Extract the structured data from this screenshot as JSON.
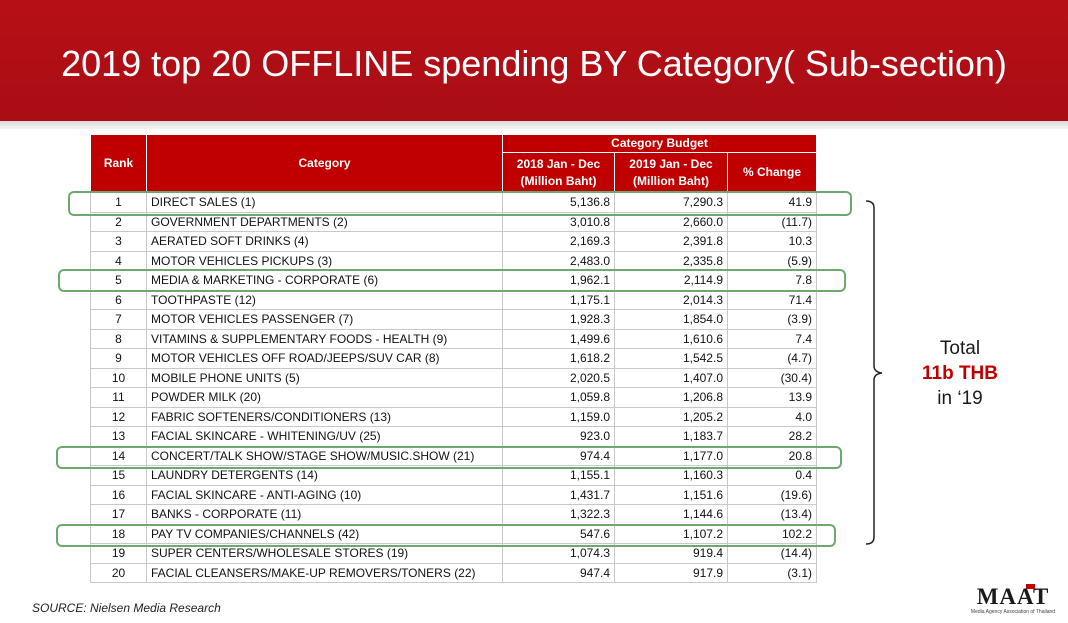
{
  "slide": {
    "title": "2019 top 20 OFFLINE spending BY Category( Sub-section)",
    "source": "SOURCE: Nielsen Media Research",
    "logo_text": "MAAT",
    "logo_subtext": "Media Agency Association of Thailand"
  },
  "table": {
    "headers": {
      "rank": "Rank",
      "category": "Category",
      "group": "Category Budget",
      "col2018": "2018 Jan - Dec",
      "col2018_unit": "(Million Baht)",
      "col2019": "2019 Jan - Dec",
      "col2019_unit": "(Million Baht)",
      "change": "% Change"
    },
    "rows": [
      {
        "rank": "1",
        "category": "DIRECT SALES (1)",
        "y2018": "5,136.8",
        "y2019": "7,290.3",
        "change": "41.9",
        "negative": false
      },
      {
        "rank": "2",
        "category": "GOVERNMENT DEPARTMENTS (2)",
        "y2018": "3,010.8",
        "y2019": "2,660.0",
        "change": "(11.7)",
        "negative": true
      },
      {
        "rank": "3",
        "category": "AERATED SOFT DRINKS (4)",
        "y2018": "2,169.3",
        "y2019": "2,391.8",
        "change": "10.3",
        "negative": false
      },
      {
        "rank": "4",
        "category": "MOTOR VEHICLES PICKUPS (3)",
        "y2018": "2,483.0",
        "y2019": "2,335.8",
        "change": "(5.9)",
        "negative": true
      },
      {
        "rank": "5",
        "category": "MEDIA & MARKETING - CORPORATE (6)",
        "y2018": "1,962.1",
        "y2019": "2,114.9",
        "change": "7.8",
        "negative": false
      },
      {
        "rank": "6",
        "category": "TOOTHPASTE (12)",
        "y2018": "1,175.1",
        "y2019": "2,014.3",
        "change": "71.4",
        "negative": false
      },
      {
        "rank": "7",
        "category": "MOTOR VEHICLES PASSENGER (7)",
        "y2018": "1,928.3",
        "y2019": "1,854.0",
        "change": "(3.9)",
        "negative": true
      },
      {
        "rank": "8",
        "category": "VITAMINS & SUPPLEMENTARY FOODS - HEALTH (9)",
        "y2018": "1,499.6",
        "y2019": "1,610.6",
        "change": "7.4",
        "negative": false
      },
      {
        "rank": "9",
        "category": "MOTOR VEHICLES OFF ROAD/JEEPS/SUV CAR (8)",
        "y2018": "1,618.2",
        "y2019": "1,542.5",
        "change": "(4.7)",
        "negative": true
      },
      {
        "rank": "10",
        "category": "MOBILE PHONE UNITS (5)",
        "y2018": "2,020.5",
        "y2019": "1,407.0",
        "change": "(30.4)",
        "negative": true
      },
      {
        "rank": "11",
        "category": "POWDER MILK (20)",
        "y2018": "1,059.8",
        "y2019": "1,206.8",
        "change": "13.9",
        "negative": false
      },
      {
        "rank": "12",
        "category": "FABRIC SOFTENERS/CONDITIONERS (13)",
        "y2018": "1,159.0",
        "y2019": "1,205.2",
        "change": "4.0",
        "negative": false
      },
      {
        "rank": "13",
        "category": "FACIAL SKINCARE - WHITENING/UV (25)",
        "y2018": "923.0",
        "y2019": "1,183.7",
        "change": "28.2",
        "negative": false
      },
      {
        "rank": "14",
        "category": "CONCERT/TALK SHOW/STAGE SHOW/MUSIC.SHOW (21)",
        "y2018": "974.4",
        "y2019": "1,177.0",
        "change": "20.8",
        "negative": false
      },
      {
        "rank": "15",
        "category": "LAUNDRY DETERGENTS (14)",
        "y2018": "1,155.1",
        "y2019": "1,160.3",
        "change": "0.4",
        "negative": false
      },
      {
        "rank": "16",
        "category": "FACIAL SKINCARE - ANTI-AGING (10)",
        "y2018": "1,431.7",
        "y2019": "1,151.6",
        "change": "(19.6)",
        "negative": true
      },
      {
        "rank": "17",
        "category": "BANKS - CORPORATE (11)",
        "y2018": "1,322.3",
        "y2019": "1,144.6",
        "change": "(13.4)",
        "negative": true
      },
      {
        "rank": "18",
        "category": "PAY TV COMPANIES/CHANNELS (42)",
        "y2018": "547.6",
        "y2019": "1,107.2",
        "change": "102.2",
        "negative": false
      },
      {
        "rank": "19",
        "category": "SUPER CENTERS/WHOLESALE STORES (19)",
        "y2018": "1,074.3",
        "y2019": "919.4",
        "change": "(14.4)",
        "negative": true
      },
      {
        "rank": "20",
        "category": "FACIAL CLEANSERS/MAKE-UP REMOVERS/TONERS (22)",
        "y2018": "947.4",
        "y2019": "917.9",
        "change": "(3.1)",
        "negative": true
      }
    ],
    "highlighted_ranks": [
      "1",
      "5",
      "14",
      "18"
    ]
  },
  "total": {
    "line1": "Total",
    "line2": "11b THB",
    "line3": "in ‘19"
  },
  "colors": {
    "banner": "#b80f17",
    "header": "#c00000",
    "negative": "#e0202a",
    "highlight": "#6fa86f"
  }
}
